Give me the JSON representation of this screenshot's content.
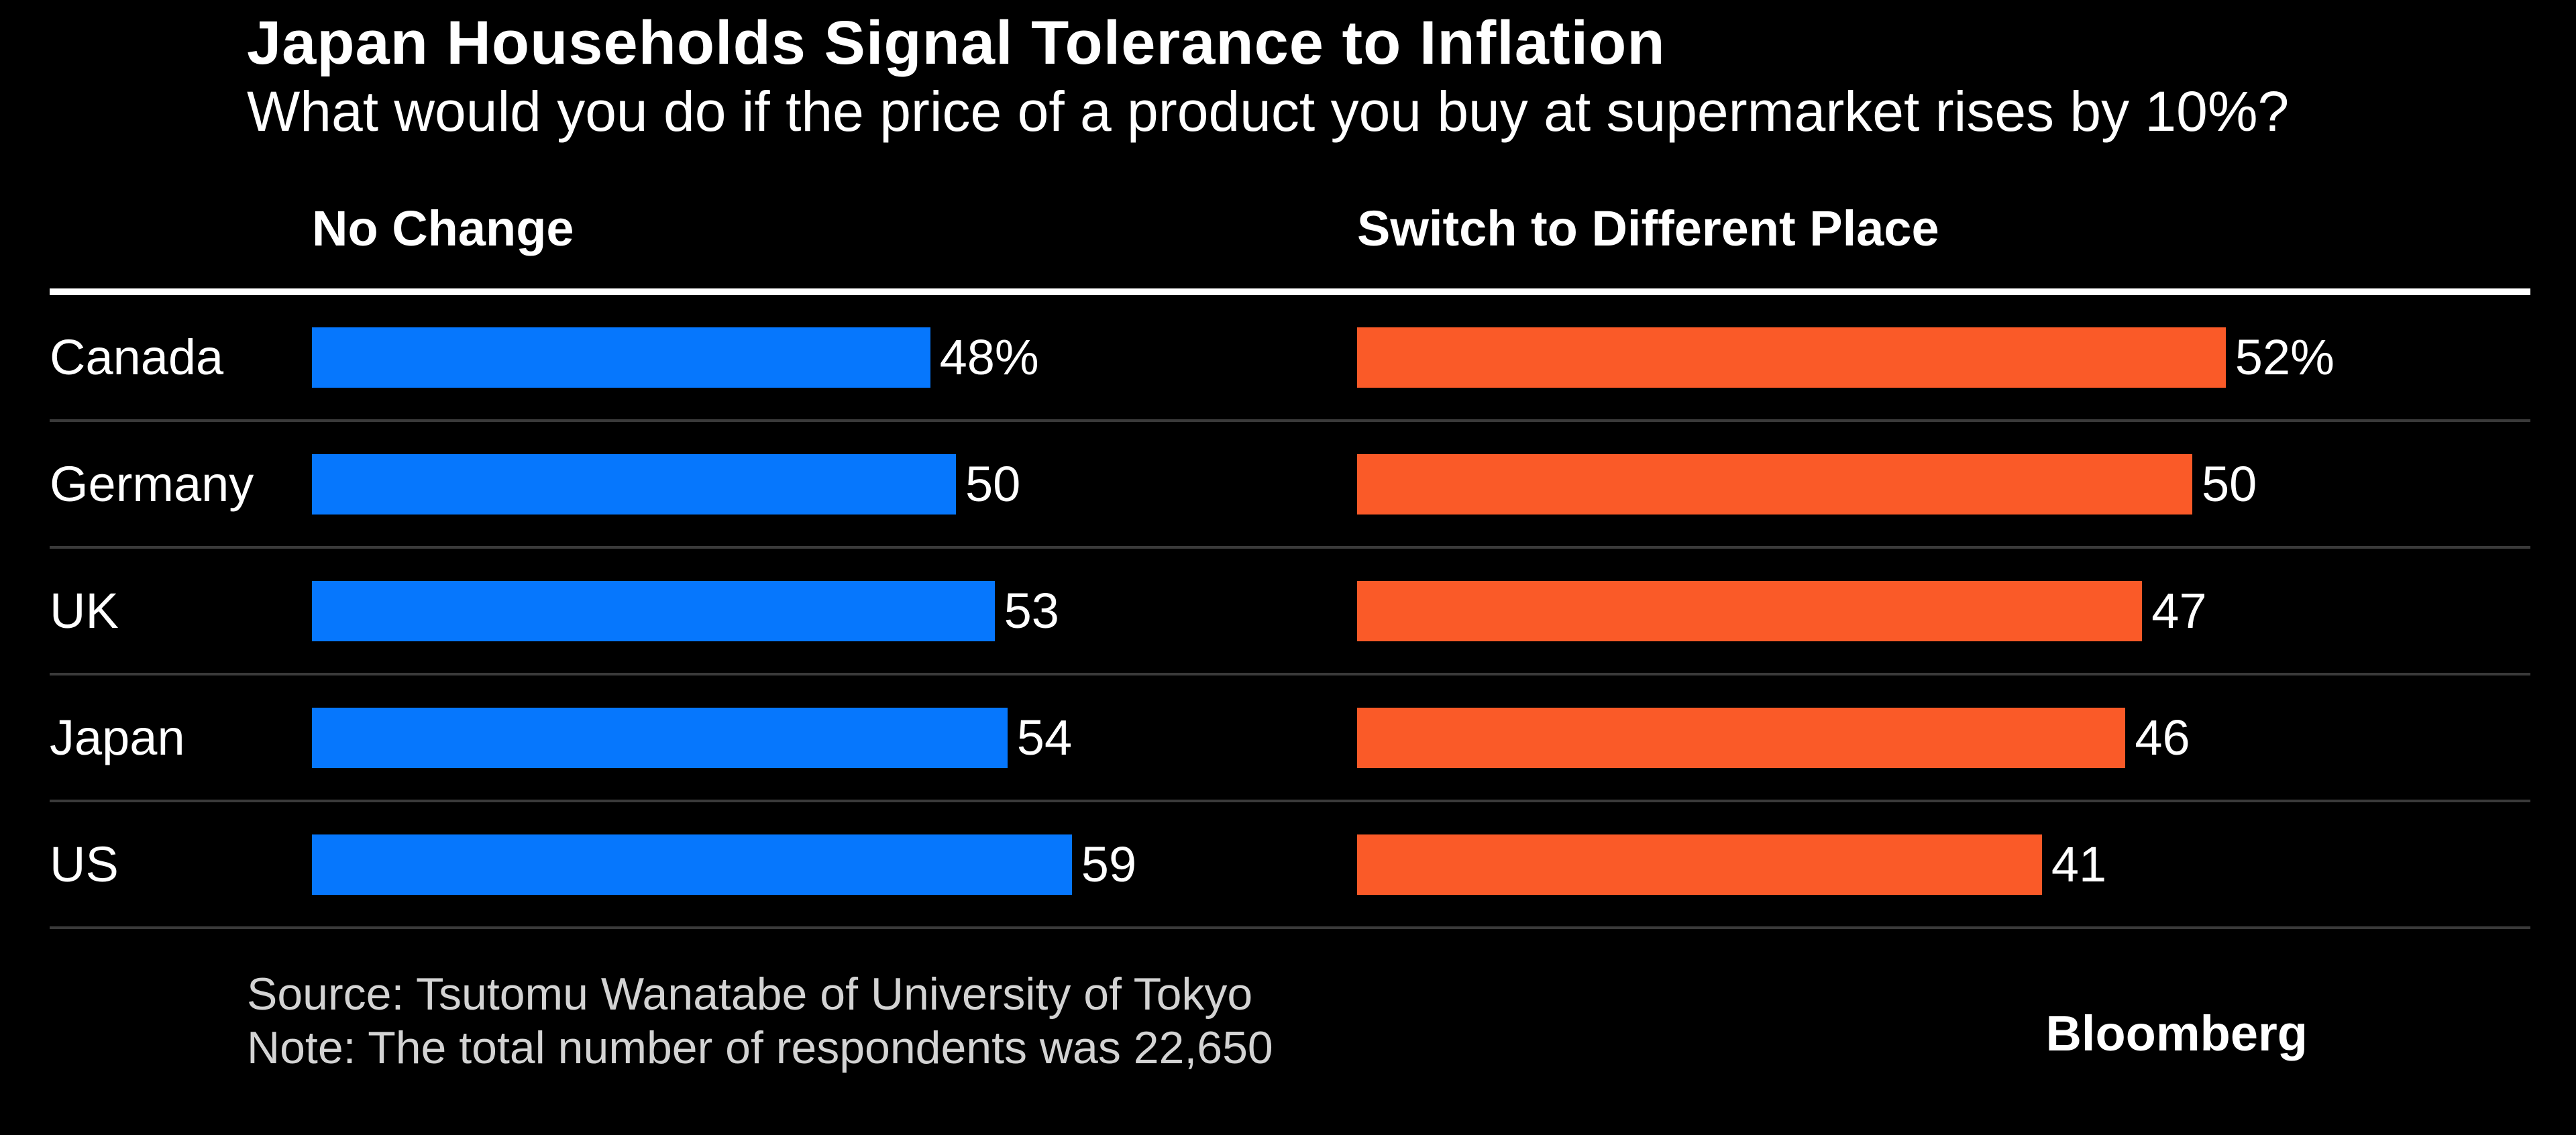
{
  "chart_data": {
    "type": "bar",
    "orientation": "horizontal",
    "title": "Japan Households Signal Tolerance to Inflation",
    "subtitle": "What would you do if the price of a product you buy at supermarket rises by 10%?",
    "categories": [
      "Canada",
      "Germany",
      "UK",
      "Japan",
      "US"
    ],
    "series": [
      {
        "name": "No Change",
        "color": "#0677fd",
        "values": [
          48,
          50,
          53,
          54,
          59
        ],
        "labels": [
          "48%",
          "50",
          "53",
          "54",
          "59"
        ]
      },
      {
        "name": "Switch to Different Place",
        "color": "#fa5a28",
        "values": [
          52,
          50,
          47,
          46,
          41
        ],
        "labels": [
          "52%",
          "50",
          "47",
          "46",
          "41"
        ]
      }
    ],
    "xlim": [
      0,
      60
    ],
    "grid": false,
    "legend_position": "column-headers",
    "value_labels": "outside-end"
  },
  "footer": {
    "source": "Source: Tsutomu Wanatabe of University of Tokyo",
    "note": "Note: The total number of respondents was 22,650",
    "brand": "Bloomberg"
  },
  "colors": {
    "background": "#000000",
    "bar_blue": "#0677fd",
    "bar_orange": "#fa5a28",
    "header_rule": "#ffffff",
    "row_separator": "#3a3a3a",
    "footer_text": "#d3d3d3"
  }
}
